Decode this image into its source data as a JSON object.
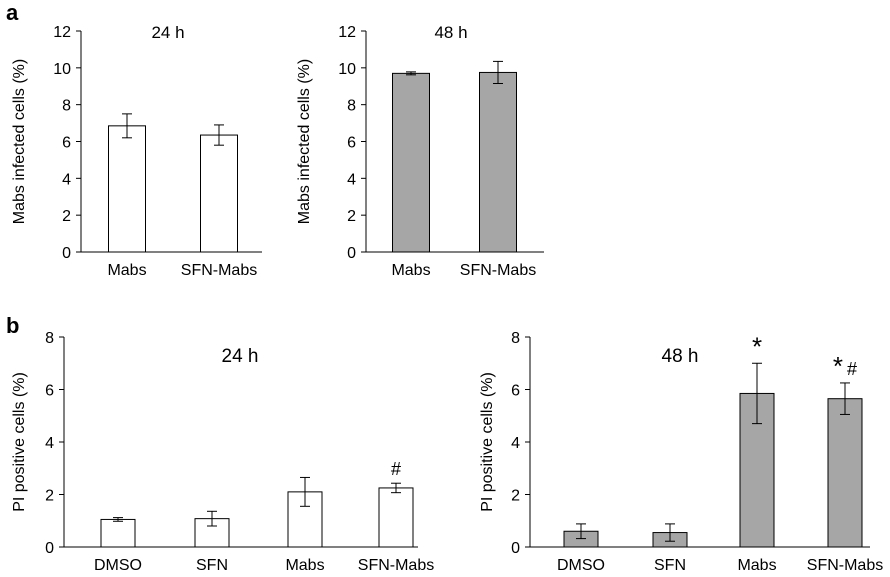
{
  "panel_labels": [
    "a",
    "b"
  ],
  "chart_data": [
    {
      "type": "bar",
      "panel": "a",
      "title": "24 h",
      "ylabel": "Mabs infected cells (%)",
      "ylim": [
        0,
        12
      ],
      "yticks": [
        0,
        2,
        4,
        6,
        8,
        10,
        12
      ],
      "categories": [
        "Mabs",
        "SFN-Mabs"
      ],
      "values": [
        6.85,
        6.35
      ],
      "errors": [
        0.65,
        0.55
      ],
      "annotations": [
        "",
        ""
      ],
      "bar_color": "#ffffff"
    },
    {
      "type": "bar",
      "panel": "a",
      "title": "48 h",
      "ylabel": "Mabs infected cells (%)",
      "ylim": [
        0,
        12
      ],
      "yticks": [
        0,
        2,
        4,
        6,
        8,
        10,
        12
      ],
      "categories": [
        "Mabs",
        "SFN-Mabs"
      ],
      "values": [
        9.7,
        9.75
      ],
      "errors": [
        0.08,
        0.6
      ],
      "annotations": [
        "",
        ""
      ],
      "bar_color": "#a6a6a6"
    },
    {
      "type": "bar",
      "panel": "b",
      "title": "24 h",
      "ylabel": "PI positive cells (%)",
      "ylim": [
        0,
        8
      ],
      "yticks": [
        0,
        2,
        4,
        6,
        8
      ],
      "categories": [
        "DMSO",
        "SFN",
        "Mabs",
        "SFN-Mabs"
      ],
      "values": [
        1.05,
        1.08,
        2.1,
        2.25
      ],
      "errors": [
        0.07,
        0.28,
        0.55,
        0.18
      ],
      "annotations": [
        "",
        "",
        "",
        "#"
      ],
      "bar_color": "#ffffff"
    },
    {
      "type": "bar",
      "panel": "b",
      "title": "48 h",
      "ylabel": "PI positive cells (%)",
      "ylim": [
        0,
        8
      ],
      "yticks": [
        0,
        2,
        4,
        6,
        8
      ],
      "categories": [
        "DMSO",
        "SFN",
        "Mabs",
        "SFN-Mabs"
      ],
      "values": [
        0.6,
        0.55,
        5.85,
        5.65
      ],
      "errors": [
        0.28,
        0.33,
        1.15,
        0.6
      ],
      "annotations": [
        "",
        "",
        "*",
        "* #"
      ],
      "bar_color": "#a6a6a6"
    }
  ]
}
